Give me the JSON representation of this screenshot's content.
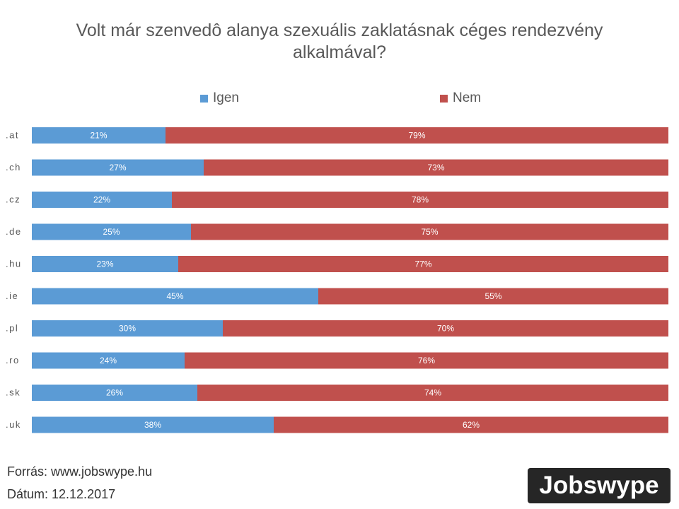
{
  "chart_data": {
    "type": "bar",
    "orientation": "horizontal",
    "stacked": "percent",
    "title": "Volt már szenvedô alanya szexuális zaklatásnak céges rendezvény alkalmával?",
    "categories": [
      ".at",
      ".ch",
      ".cz",
      ".de",
      ".hu",
      ".ie",
      ".pl",
      ".ro",
      ".sk",
      ".uk"
    ],
    "series": [
      {
        "name": "Igen",
        "color": "#5B9BD5",
        "values": [
          21,
          27,
          22,
          25,
          23,
          45,
          30,
          24,
          26,
          38
        ]
      },
      {
        "name": "Nem",
        "color": "#C0504D",
        "values": [
          79,
          73,
          78,
          75,
          77,
          55,
          70,
          76,
          74,
          62
        ]
      }
    ],
    "value_suffix": "%",
    "xlim": [
      0,
      100
    ],
    "grid": false,
    "legend": "top-center"
  },
  "footer": {
    "source": "Forrás: www.jobswype.hu",
    "date": "Dátum: 12.12.2017"
  },
  "logo": {
    "text": "Jobswype"
  }
}
